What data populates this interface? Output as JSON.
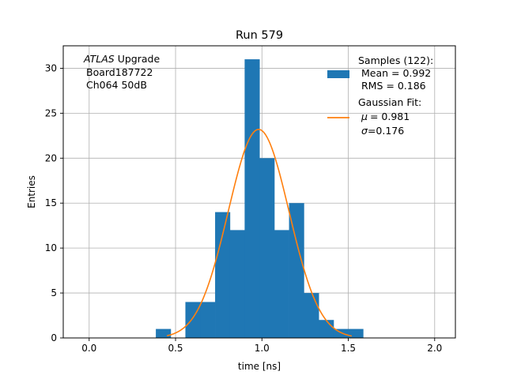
{
  "chart_data": {
    "type": "bar",
    "title": "Run 579",
    "xlabel": "time [ns]",
    "ylabel": "Entries",
    "xlim": [
      -0.15,
      2.12
    ],
    "ylim": [
      0,
      32.5
    ],
    "xticks": [
      0.0,
      0.5,
      1.0,
      1.5,
      2.0
    ],
    "xtick_labels": [
      "0.0",
      "0.5",
      "1.0",
      "1.5",
      "2.0"
    ],
    "yticks": [
      0,
      5,
      10,
      15,
      20,
      25,
      30
    ],
    "ytick_labels": [
      "0",
      "5",
      "10",
      "15",
      "20",
      "25",
      "30"
    ],
    "grid": true,
    "legend_position": "top-right",
    "annotation": {
      "italic": "ATLAS",
      "line1_rest": " Upgrade",
      "line2": "Board187722",
      "line3": "Ch064 50dB"
    },
    "histogram": {
      "name": "Samples (122):",
      "mean_label": "Mean = 0.992",
      "rms_label": "RMS = 0.186",
      "color": "#1f77b4",
      "bin_width": 0.0857,
      "bins": [
        {
          "x0": 0.386,
          "count": 1
        },
        {
          "x0": 0.471,
          "count": 0
        },
        {
          "x0": 0.557,
          "count": 4
        },
        {
          "x0": 0.643,
          "count": 4
        },
        {
          "x0": 0.729,
          "count": 14
        },
        {
          "x0": 0.814,
          "count": 12
        },
        {
          "x0": 0.9,
          "count": 31
        },
        {
          "x0": 0.986,
          "count": 20
        },
        {
          "x0": 1.071,
          "count": 12
        },
        {
          "x0": 1.157,
          "count": 15
        },
        {
          "x0": 1.243,
          "count": 5
        },
        {
          "x0": 1.329,
          "count": 2
        },
        {
          "x0": 1.414,
          "count": 1
        },
        {
          "x0": 1.5,
          "count": 1
        }
      ]
    },
    "fit": {
      "name": "Gaussian Fit:",
      "mu_label": "= 0.981",
      "sigma_label": "=0.176",
      "mu": 0.981,
      "sigma": 0.176,
      "amplitude": 23.2,
      "x_range": [
        0.45,
        1.52
      ],
      "color": "#ff7f0e"
    }
  }
}
